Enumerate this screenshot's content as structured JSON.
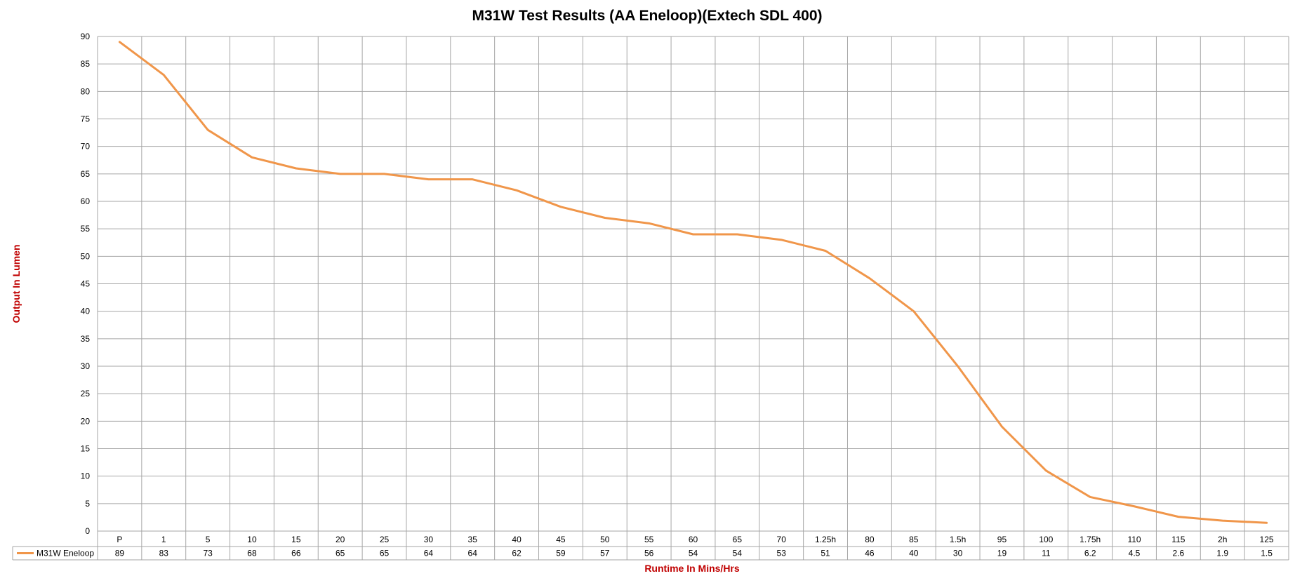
{
  "chart_data": {
    "type": "line",
    "title": "M31W Test Results (AA Eneloop)(Extech SDL 400)",
    "xlabel": "Runtime In Mins/Hrs",
    "ylabel": "Output In Lumen",
    "ylim": [
      0,
      90
    ],
    "ystep": 5,
    "grid": true,
    "legend": "data-table-left",
    "categories": [
      "P",
      "1",
      "5",
      "10",
      "15",
      "20",
      "25",
      "30",
      "35",
      "40",
      "45",
      "50",
      "55",
      "60",
      "65",
      "70",
      "1.25h",
      "80",
      "85",
      "1.5h",
      "95",
      "100",
      "1.75h",
      "110",
      "115",
      "2h",
      "125"
    ],
    "series": [
      {
        "name": "M31W Eneloop",
        "color": "#f0964a",
        "values": [
          89,
          83,
          73,
          68,
          66,
          65,
          65,
          64,
          64,
          62,
          59,
          57,
          56,
          54,
          54,
          53,
          51,
          46,
          40,
          30,
          19,
          11,
          6.2,
          4.5,
          2.6,
          1.9,
          1.5
        ],
        "value_labels": [
          "89",
          "83",
          "73",
          "68",
          "66",
          "65",
          "65",
          "64",
          "64",
          "62",
          "59",
          "57",
          "56",
          "54",
          "54",
          "53",
          "51",
          "46",
          "40",
          "30",
          "19",
          "11",
          "6.2",
          "4.5",
          "2.6",
          "1.9",
          "1.5"
        ]
      }
    ]
  },
  "colors": {
    "axis_title": "#c00000",
    "grid": "#a6a6a6"
  }
}
